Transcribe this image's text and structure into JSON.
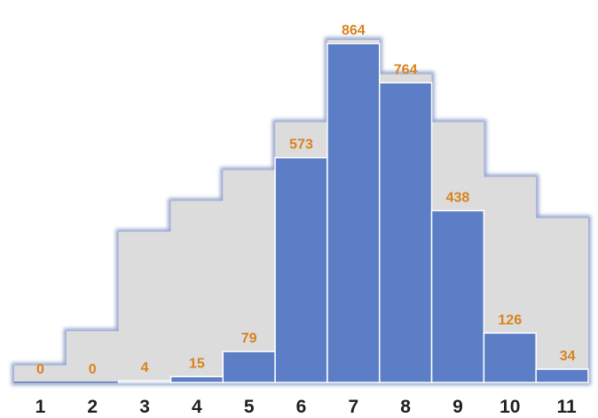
{
  "chart_data": {
    "type": "bar",
    "title": "",
    "xlabel": "",
    "ylabel": "",
    "categories": [
      "1",
      "2",
      "3",
      "4",
      "5",
      "6",
      "7",
      "8",
      "9",
      "10",
      "11"
    ],
    "values": [
      0,
      0,
      4,
      15,
      79,
      573,
      864,
      764,
      438,
      126,
      34
    ],
    "background_steps": [
      0.5,
      1.5,
      4.4,
      5.3,
      6.2,
      7.6,
      10.0,
      9.0,
      7.6,
      6.0,
      4.8
    ],
    "ylim": [
      0,
      880
    ],
    "grid": false,
    "legend": "none",
    "bar_color": "#4a68b5",
    "bar_top_color": "#5b7ec6",
    "background_color": "#dcdcdc",
    "label_color": "#d9821e"
  }
}
